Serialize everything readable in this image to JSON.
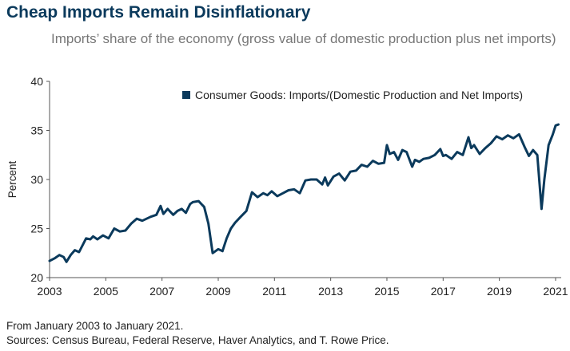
{
  "header": {
    "title": "Cheap Imports Remain Disinflationary",
    "subtitle": "Imports’ share of the economy (gross value of domestic production plus net imports)"
  },
  "notes": {
    "period": "From January 2003 to January 2021.",
    "sources": "Sources: Census Bureau, Federal Reserve, Haver Analytics, and T. Rowe Price."
  },
  "colors": {
    "series": "#0b3a5c",
    "axis": "#555555"
  },
  "chart_data": {
    "type": "line",
    "title": "Cheap Imports Remain Disinflationary",
    "ylabel": "Percent",
    "xlabel": "",
    "xlim": [
      2003,
      2021.2
    ],
    "ylim": [
      20,
      40
    ],
    "x_ticks": [
      2003,
      2005,
      2007,
      2009,
      2011,
      2013,
      2015,
      2017,
      2019,
      2021
    ],
    "x_tick_labels": [
      "2003",
      "2005",
      "2007",
      "2009",
      "2011",
      "2013",
      "2015",
      "2017",
      "2019",
      "2021"
    ],
    "y_ticks": [
      20,
      25,
      30,
      35,
      40
    ],
    "y_tick_labels": [
      "20",
      "25",
      "30",
      "35",
      "40"
    ],
    "grid": false,
    "legend_position": "top-right",
    "series": [
      {
        "name": "Consumer Goods: Imports/(Domestic Production and Net Imports)",
        "x": [
          2003.0,
          2003.2,
          2003.35,
          2003.5,
          2003.6,
          2003.75,
          2003.9,
          2004.05,
          2004.3,
          2004.45,
          2004.55,
          2004.7,
          2004.9,
          2005.1,
          2005.3,
          2005.5,
          2005.7,
          2005.9,
          2006.1,
          2006.3,
          2006.45,
          2006.6,
          2006.8,
          2006.95,
          2007.05,
          2007.2,
          2007.4,
          2007.55,
          2007.7,
          2007.85,
          2008.0,
          2008.1,
          2008.3,
          2008.5,
          2008.65,
          2008.8,
          2009.0,
          2009.15,
          2009.3,
          2009.45,
          2009.6,
          2009.8,
          2010.0,
          2010.2,
          2010.4,
          2010.6,
          2010.75,
          2010.9,
          2011.1,
          2011.3,
          2011.5,
          2011.7,
          2011.9,
          2012.1,
          2012.3,
          2012.5,
          2012.7,
          2012.8,
          2012.9,
          2013.1,
          2013.3,
          2013.5,
          2013.7,
          2013.9,
          2014.1,
          2014.3,
          2014.5,
          2014.7,
          2014.9,
          2015.0,
          2015.1,
          2015.25,
          2015.4,
          2015.55,
          2015.7,
          2015.9,
          2016.0,
          2016.15,
          2016.3,
          2016.5,
          2016.7,
          2016.9,
          2017.0,
          2017.1,
          2017.3,
          2017.5,
          2017.7,
          2017.9,
          2018.0,
          2018.1,
          2018.3,
          2018.5,
          2018.7,
          2018.9,
          2019.1,
          2019.3,
          2019.5,
          2019.7,
          2019.9,
          2020.05,
          2020.2,
          2020.35,
          2020.5,
          2020.6,
          2020.75,
          2020.9,
          2021.0,
          2021.1
        ],
        "y": [
          21.7,
          22.0,
          22.3,
          22.1,
          21.6,
          22.3,
          22.8,
          22.6,
          24.0,
          23.9,
          24.2,
          23.9,
          24.3,
          24.0,
          25.0,
          24.7,
          24.8,
          25.5,
          26.0,
          25.8,
          26.0,
          26.2,
          26.4,
          27.3,
          26.5,
          27.0,
          26.4,
          26.8,
          27.0,
          26.6,
          27.5,
          27.7,
          27.8,
          27.2,
          25.5,
          22.5,
          22.9,
          22.7,
          24.0,
          25.0,
          25.6,
          26.2,
          26.8,
          28.7,
          28.2,
          28.6,
          28.4,
          28.8,
          28.3,
          28.6,
          28.9,
          29.0,
          28.6,
          29.9,
          30.0,
          30.0,
          29.5,
          30.2,
          29.4,
          30.3,
          30.6,
          29.9,
          30.8,
          30.9,
          31.5,
          31.3,
          31.9,
          31.6,
          31.7,
          33.5,
          32.6,
          32.8,
          32.0,
          33.0,
          32.8,
          31.3,
          32.0,
          31.8,
          32.1,
          32.2,
          32.5,
          33.1,
          32.4,
          32.5,
          32.1,
          32.8,
          32.5,
          34.3,
          33.2,
          33.5,
          32.6,
          33.2,
          33.7,
          34.4,
          34.1,
          34.5,
          34.2,
          34.6,
          33.3,
          32.4,
          33.0,
          32.5,
          27.0,
          30.0,
          33.5,
          34.6,
          35.5,
          35.6
        ]
      }
    ]
  }
}
